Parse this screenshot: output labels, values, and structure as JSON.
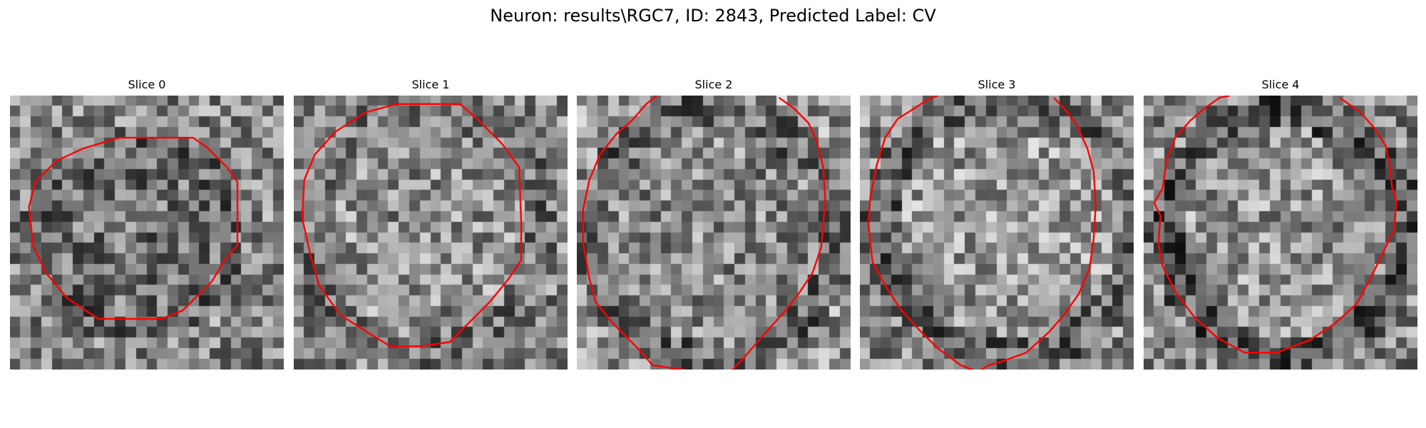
{
  "figure": {
    "title": "Neuron: results\\RGC7, ID: 2843, Predicted Label: CV"
  },
  "panels": [
    {
      "title": "Slice 0",
      "contour": [
        [
          7.0,
          2.0
        ],
        [
          8.7,
          2.0
        ],
        [
          9.4,
          2.5
        ],
        [
          10.3,
          3.4
        ],
        [
          10.8,
          4.1
        ],
        [
          10.8,
          7.1
        ],
        [
          10.2,
          7.8
        ],
        [
          9.6,
          8.8
        ],
        [
          8.2,
          10.2
        ],
        [
          7.2,
          10.6
        ],
        [
          4.2,
          10.6
        ],
        [
          2.7,
          9.6
        ],
        [
          1.7,
          8.4
        ],
        [
          1.1,
          7.1
        ],
        [
          0.9,
          5.3
        ],
        [
          1.2,
          4.1
        ],
        [
          2.2,
          3.1
        ],
        [
          3.5,
          2.5
        ],
        [
          5.2,
          2.0
        ],
        [
          7.0,
          2.0
        ]
      ]
    },
    {
      "title": "Slice 1",
      "contour": [
        [
          4.9,
          0.4
        ],
        [
          7.9,
          0.4
        ],
        [
          8.8,
          1.2
        ],
        [
          9.9,
          2.3
        ],
        [
          10.7,
          3.4
        ],
        [
          10.8,
          6.0
        ],
        [
          10.8,
          7.8
        ],
        [
          10.2,
          8.7
        ],
        [
          9.3,
          9.8
        ],
        [
          8.3,
          10.8
        ],
        [
          7.4,
          11.7
        ],
        [
          6.0,
          11.9
        ],
        [
          4.6,
          11.9
        ],
        [
          3.6,
          11.3
        ],
        [
          2.2,
          10.4
        ],
        [
          1.2,
          9.0
        ],
        [
          0.8,
          7.6
        ],
        [
          0.4,
          5.8
        ],
        [
          0.5,
          4.0
        ],
        [
          1.0,
          2.8
        ],
        [
          2.0,
          1.7
        ],
        [
          3.4,
          0.8
        ],
        [
          4.9,
          0.4
        ]
      ]
    },
    {
      "title": "Slice 2",
      "contour": [
        [
          9.6,
          0.1
        ],
        [
          10.3,
          0.6
        ],
        [
          11.0,
          1.3
        ],
        [
          11.4,
          2.2
        ],
        [
          11.7,
          3.4
        ],
        [
          11.8,
          5.0
        ],
        [
          11.6,
          7.2
        ],
        [
          11.2,
          8.4
        ],
        [
          10.6,
          9.3
        ],
        [
          10.0,
          10.1
        ],
        [
          9.1,
          11.1
        ],
        [
          8.4,
          11.9
        ],
        [
          7.8,
          12.6
        ],
        [
          7.1,
          13.3
        ],
        [
          3.6,
          12.8
        ],
        [
          2.9,
          12.0
        ],
        [
          1.7,
          10.8
        ],
        [
          0.9,
          9.8
        ],
        [
          0.6,
          8.7
        ],
        [
          0.3,
          7.0
        ],
        [
          0.3,
          5.4
        ],
        [
          0.6,
          4.0
        ],
        [
          1.1,
          2.8
        ],
        [
          1.9,
          1.8
        ],
        [
          2.6,
          1.2
        ],
        [
          3.3,
          0.4
        ],
        [
          3.8,
          0.0
        ]
      ]
    },
    {
      "title": "Slice 3",
      "contour": [
        [
          9.2,
          0.1
        ],
        [
          9.7,
          0.6
        ],
        [
          10.3,
          1.4
        ],
        [
          10.8,
          2.5
        ],
        [
          11.1,
          3.6
        ],
        [
          11.2,
          5.2
        ],
        [
          11.1,
          6.8
        ],
        [
          10.9,
          8.2
        ],
        [
          10.4,
          9.4
        ],
        [
          9.7,
          10.4
        ],
        [
          9.0,
          11.2
        ],
        [
          7.9,
          12.2
        ],
        [
          6.8,
          12.6
        ],
        [
          6.1,
          12.8
        ],
        [
          5.6,
          13.1
        ],
        [
          4.8,
          12.8
        ],
        [
          3.7,
          12.0
        ],
        [
          2.8,
          11.1
        ],
        [
          1.9,
          10.1
        ],
        [
          1.2,
          9.0
        ],
        [
          0.6,
          7.9
        ],
        [
          0.4,
          6.1
        ],
        [
          0.5,
          4.8
        ],
        [
          0.8,
          3.3
        ],
        [
          1.2,
          2.0
        ],
        [
          1.8,
          1.1
        ],
        [
          2.6,
          0.6
        ],
        [
          3.2,
          0.2
        ],
        [
          3.7,
          0.0
        ]
      ]
    },
    {
      "title": "Slice 4",
      "contour": [
        [
          9.3,
          0.1
        ],
        [
          10.3,
          0.8
        ],
        [
          11.0,
          1.6
        ],
        [
          11.5,
          2.4
        ],
        [
          11.7,
          3.4
        ],
        [
          11.8,
          4.4
        ],
        [
          12.0,
          5.0
        ],
        [
          11.9,
          6.3
        ],
        [
          11.3,
          7.6
        ],
        [
          10.7,
          8.8
        ],
        [
          10.1,
          9.9
        ],
        [
          9.1,
          10.8
        ],
        [
          7.9,
          11.6
        ],
        [
          6.3,
          12.2
        ],
        [
          4.8,
          12.2
        ],
        [
          3.5,
          11.5
        ],
        [
          2.4,
          10.5
        ],
        [
          1.5,
          9.3
        ],
        [
          0.9,
          8.1
        ],
        [
          0.7,
          7.0
        ],
        [
          0.8,
          5.7
        ],
        [
          0.5,
          5.1
        ],
        [
          0.9,
          4.4
        ],
        [
          1.1,
          3.0
        ],
        [
          1.5,
          2.0
        ],
        [
          2.2,
          1.2
        ],
        [
          2.9,
          0.6
        ],
        [
          3.6,
          0.1
        ],
        [
          4.1,
          0.0
        ]
      ]
    }
  ],
  "style": {
    "contour_color": "#ff0000"
  }
}
